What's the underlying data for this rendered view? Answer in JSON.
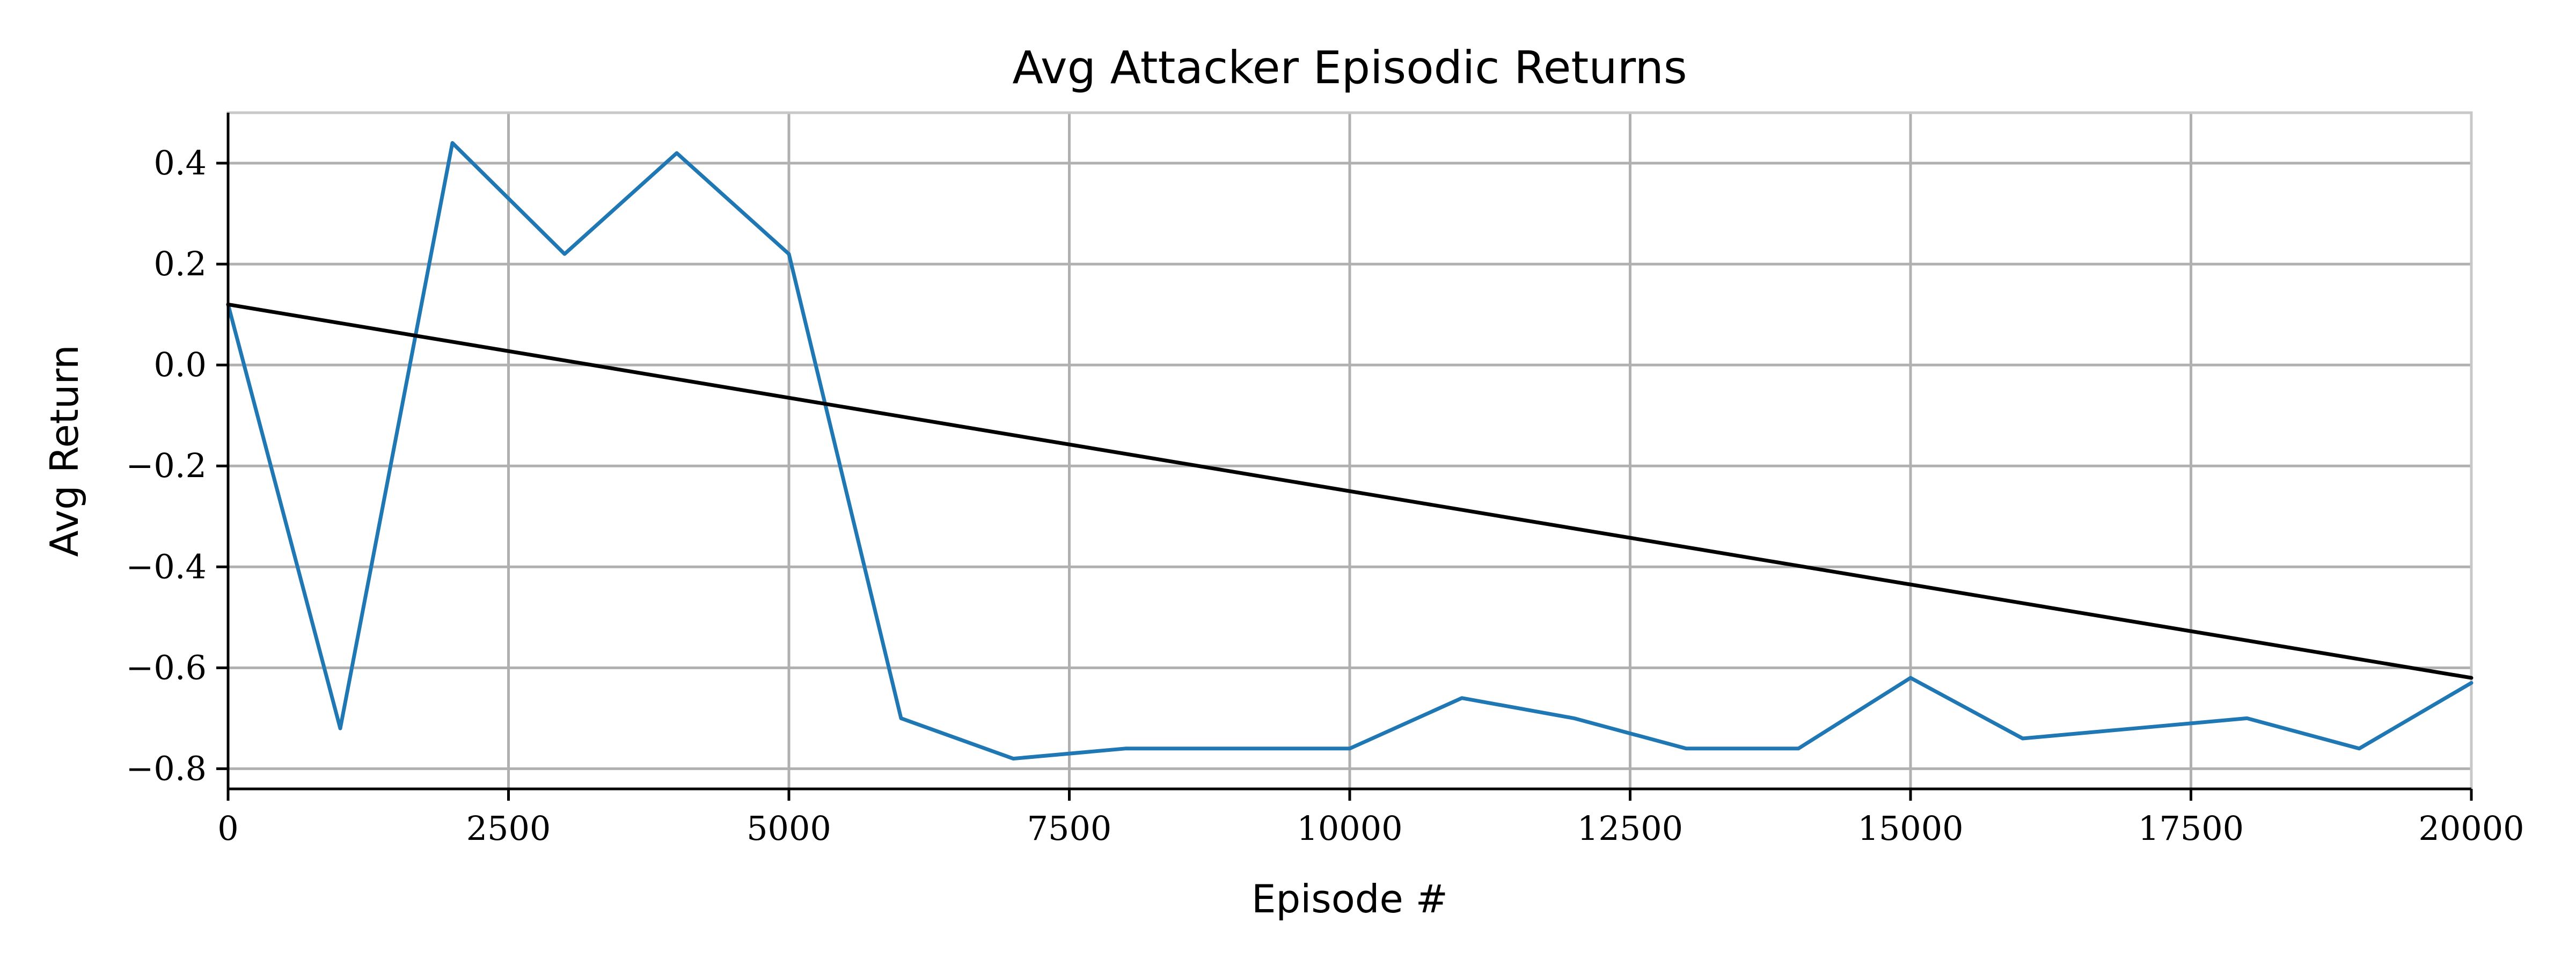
{
  "chart_data": {
    "type": "line",
    "title": "Avg Attacker Episodic Returns",
    "xlabel": "Episode #",
    "ylabel": "Avg Return",
    "xlim": [
      0,
      20000
    ],
    "ylim": [
      -0.84,
      0.5
    ],
    "xticks": [
      0,
      2500,
      5000,
      7500,
      10000,
      12500,
      15000,
      17500,
      20000
    ],
    "xtick_labels": [
      "0",
      "2500",
      "5000",
      "7500",
      "10000",
      "12500",
      "15000",
      "17500",
      "20000"
    ],
    "yticks": [
      0.4,
      0.2,
      0.0,
      -0.2,
      -0.4,
      -0.6,
      -0.8
    ],
    "ytick_labels": [
      "0.4",
      "0.2",
      "0.0",
      "−0.2",
      "−0.4",
      "−0.6",
      "−0.8"
    ],
    "grid": true,
    "series": [
      {
        "color": "#1f77b4",
        "x": [
          0,
          1000,
          2000,
          3000,
          4000,
          5000,
          6000,
          7000,
          8000,
          9000,
          10000,
          11000,
          12000,
          13000,
          14000,
          15000,
          16000,
          17000,
          18000,
          19000,
          20000
        ],
        "y": [
          0.12,
          -0.72,
          0.44,
          0.22,
          0.42,
          0.22,
          -0.7,
          -0.78,
          -0.76,
          -0.76,
          -0.76,
          -0.66,
          -0.7,
          -0.76,
          -0.76,
          -0.62,
          -0.74,
          -0.72,
          -0.7,
          -0.76,
          -0.63
        ]
      },
      {
        "color": "#000000",
        "x": [
          0,
          20000
        ],
        "y": [
          0.12,
          -0.62
        ]
      }
    ]
  }
}
